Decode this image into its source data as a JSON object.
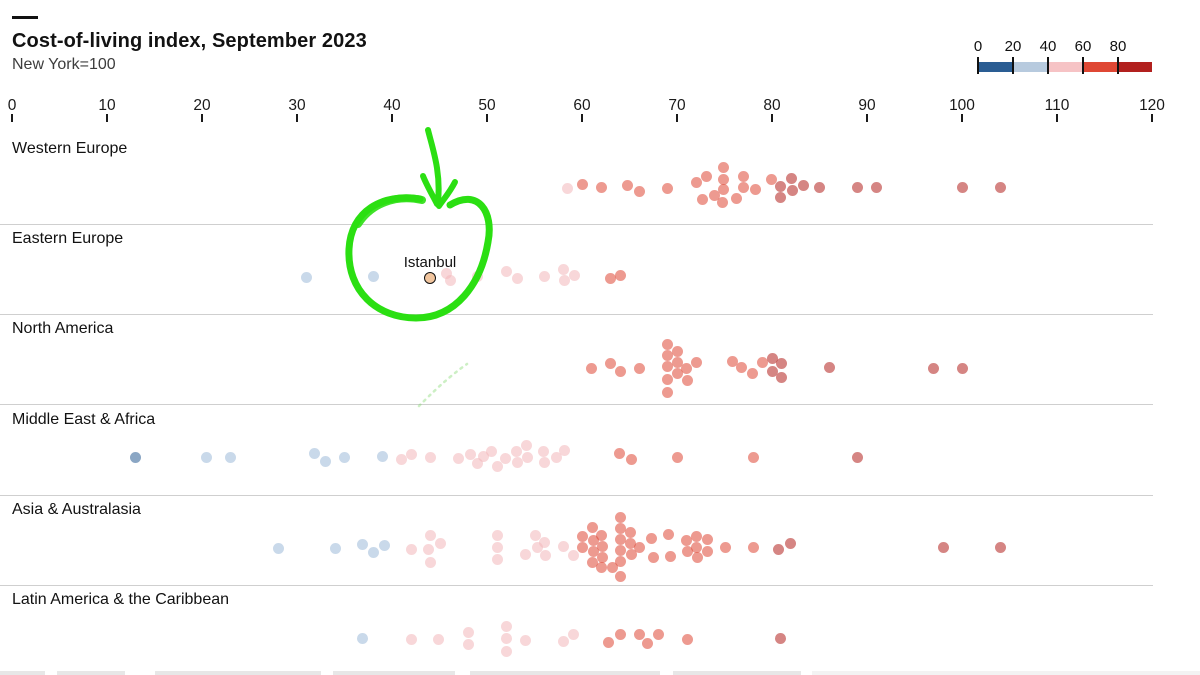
{
  "header": {
    "title": "Cost-of-living index, September 2023",
    "subtitle": "New York=100"
  },
  "legend": {
    "tick_labels": [
      "0",
      "20",
      "40",
      "60",
      "80"
    ],
    "segment_colors": [
      "#2a5d93",
      "#b7cade",
      "#f6c3c5",
      "#df4734",
      "#b2201e"
    ]
  },
  "annotation": {
    "highlight_label": "Istanbul"
  },
  "chart_data": {
    "type": "scatter",
    "title": "Cost-of-living index, September 2023",
    "subtitle": "New York=100",
    "x_axis": {
      "min": 0,
      "max": 120,
      "ticks": [
        0,
        10,
        20,
        30,
        40,
        50,
        60,
        70,
        80,
        90,
        100,
        110,
        120
      ],
      "grid": false
    },
    "color_scale": {
      "legend_ticks": [
        0,
        20,
        40,
        60,
        80
      ],
      "buckets": [
        {
          "range": [
            0,
            20
          ],
          "color": "#2a5d93"
        },
        {
          "range": [
            20,
            40
          ],
          "color": "#9db9d8"
        },
        {
          "range": [
            40,
            60
          ],
          "color": "#f2b6ba"
        },
        {
          "range": [
            60,
            80
          ],
          "color": "#df4734"
        },
        {
          "range": [
            80,
            120
          ],
          "color": "#b2201e"
        }
      ]
    },
    "highlight": {
      "label": "Istanbul",
      "region": "Eastern Europe",
      "value": 44
    },
    "regions": [
      {
        "name": "Western Europe",
        "points": [
          [
            58.5,
            1
          ],
          [
            60,
            -3
          ],
          [
            62,
            0
          ],
          [
            64.8,
            -2
          ],
          [
            66,
            4
          ],
          [
            69,
            1
          ],
          [
            72,
            -5
          ],
          [
            72.7,
            12
          ],
          [
            73.1,
            -11
          ],
          [
            73.9,
            8
          ],
          [
            74.8,
            15
          ],
          [
            74.9,
            -20
          ],
          [
            74.9,
            -8
          ],
          [
            74.9,
            2
          ],
          [
            76.3,
            11
          ],
          [
            77,
            -11
          ],
          [
            77,
            0
          ],
          [
            78.3,
            2
          ],
          [
            79.9,
            -8
          ],
          [
            80.9,
            -1
          ],
          [
            80.9,
            10
          ],
          [
            82,
            -9
          ],
          [
            82.2,
            3
          ],
          [
            83.3,
            -2
          ],
          [
            85,
            0
          ],
          [
            89,
            0
          ],
          [
            91,
            0
          ],
          [
            100,
            0
          ],
          [
            104,
            0
          ]
        ]
      },
      {
        "name": "Eastern Europe",
        "points": [
          [
            31,
            0
          ],
          [
            38,
            -1
          ],
          [
            45.7,
            -4
          ],
          [
            46.2,
            3
          ],
          [
            49,
            -1
          ],
          [
            52,
            -6
          ],
          [
            53.2,
            1
          ],
          [
            56,
            -1
          ],
          [
            58,
            -8
          ],
          [
            58.2,
            3
          ],
          [
            59.2,
            -2
          ],
          [
            63,
            1
          ],
          [
            64,
            -2
          ]
        ]
      },
      {
        "name": "North America",
        "points": [
          [
            61,
            1
          ],
          [
            63,
            -4
          ],
          [
            64,
            4
          ],
          [
            66,
            1
          ],
          [
            69,
            -23
          ],
          [
            69,
            -12
          ],
          [
            69,
            -1
          ],
          [
            69,
            12
          ],
          [
            69,
            25
          ],
          [
            70,
            -16
          ],
          [
            70,
            6
          ],
          [
            70.1,
            -5
          ],
          [
            71,
            1
          ],
          [
            71.1,
            13
          ],
          [
            72,
            -5
          ],
          [
            75.8,
            -6
          ],
          [
            76.8,
            0
          ],
          [
            77.9,
            6
          ],
          [
            79,
            -5
          ],
          [
            80,
            -9
          ],
          [
            80,
            4
          ],
          [
            81,
            -4
          ],
          [
            81,
            10
          ],
          [
            86,
            0
          ],
          [
            97,
            1
          ],
          [
            100,
            1
          ]
        ]
      },
      {
        "name": "Middle East & Africa",
        "points": [
          [
            13,
            0
          ],
          [
            20.5,
            0
          ],
          [
            23,
            0
          ],
          [
            31.8,
            -4
          ],
          [
            33,
            4
          ],
          [
            35,
            0
          ],
          [
            39,
            -1
          ],
          [
            41,
            2
          ],
          [
            42,
            -3
          ],
          [
            44,
            0
          ],
          [
            47,
            1
          ],
          [
            48.3,
            -3
          ],
          [
            49,
            6
          ],
          [
            49.6,
            -1
          ],
          [
            50.5,
            -6
          ],
          [
            51.1,
            9
          ],
          [
            51.9,
            1
          ],
          [
            53.1,
            -6
          ],
          [
            53.2,
            5
          ],
          [
            54.2,
            -12
          ],
          [
            54.3,
            0
          ],
          [
            55.9,
            -6
          ],
          [
            56.1,
            5
          ],
          [
            57.3,
            0
          ],
          [
            58.2,
            -7
          ],
          [
            63.9,
            -4
          ],
          [
            65.2,
            2
          ],
          [
            70,
            0
          ],
          [
            78,
            0
          ],
          [
            89,
            0
          ]
        ]
      },
      {
        "name": "Asia & Australasia",
        "points": [
          [
            28,
            1
          ],
          [
            34,
            1
          ],
          [
            36.9,
            -3
          ],
          [
            38,
            5
          ],
          [
            39.2,
            -2
          ],
          [
            42,
            2
          ],
          [
            43.8,
            2
          ],
          [
            44,
            -12
          ],
          [
            44,
            15
          ],
          [
            45.1,
            -4
          ],
          [
            51.1,
            -12
          ],
          [
            51.1,
            0
          ],
          [
            51.1,
            12
          ],
          [
            54,
            7
          ],
          [
            55.1,
            -12
          ],
          [
            55.3,
            0
          ],
          [
            56,
            -5
          ],
          [
            56.2,
            8
          ],
          [
            58,
            -1
          ],
          [
            59.1,
            8
          ],
          [
            60,
            -11
          ],
          [
            60.1,
            0
          ],
          [
            61.1,
            -20
          ],
          [
            61.1,
            15
          ],
          [
            61.2,
            -7
          ],
          [
            61.2,
            4
          ],
          [
            62,
            20
          ],
          [
            62.1,
            -12
          ],
          [
            62.2,
            -1
          ],
          [
            62.2,
            10
          ],
          [
            63.2,
            20
          ],
          [
            64,
            -30
          ],
          [
            64,
            -8
          ],
          [
            64,
            3
          ],
          [
            64.1,
            -19
          ],
          [
            64.1,
            14
          ],
          [
            64.1,
            29
          ],
          [
            65.1,
            -15
          ],
          [
            65.1,
            -4
          ],
          [
            65.2,
            7
          ],
          [
            66.1,
            0
          ],
          [
            67.3,
            -9
          ],
          [
            67.5,
            10
          ],
          [
            69.1,
            -13
          ],
          [
            69.3,
            9
          ],
          [
            71,
            -7
          ],
          [
            71.1,
            4
          ],
          [
            72,
            -11
          ],
          [
            72.1,
            0
          ],
          [
            72.2,
            10
          ],
          [
            73.2,
            -8
          ],
          [
            73.2,
            4
          ],
          [
            75.1,
            0
          ],
          [
            78,
            0
          ],
          [
            80.7,
            2
          ],
          [
            81.9,
            -4
          ],
          [
            98,
            0
          ],
          [
            104,
            0
          ]
        ]
      },
      {
        "name": "Latin America & the Caribbean",
        "points": [
          [
            36.9,
            0
          ],
          [
            42,
            1
          ],
          [
            44.9,
            1
          ],
          [
            48.1,
            -6
          ],
          [
            48.1,
            6
          ],
          [
            52,
            -12
          ],
          [
            52,
            0
          ],
          [
            52,
            13
          ],
          [
            54,
            2
          ],
          [
            58,
            3
          ],
          [
            59.1,
            -4
          ],
          [
            62.8,
            4
          ],
          [
            64,
            -4
          ],
          [
            66,
            -4
          ],
          [
            66.9,
            5
          ],
          [
            68,
            -4
          ],
          [
            71.1,
            1
          ],
          [
            80.9,
            0
          ]
        ]
      }
    ]
  }
}
